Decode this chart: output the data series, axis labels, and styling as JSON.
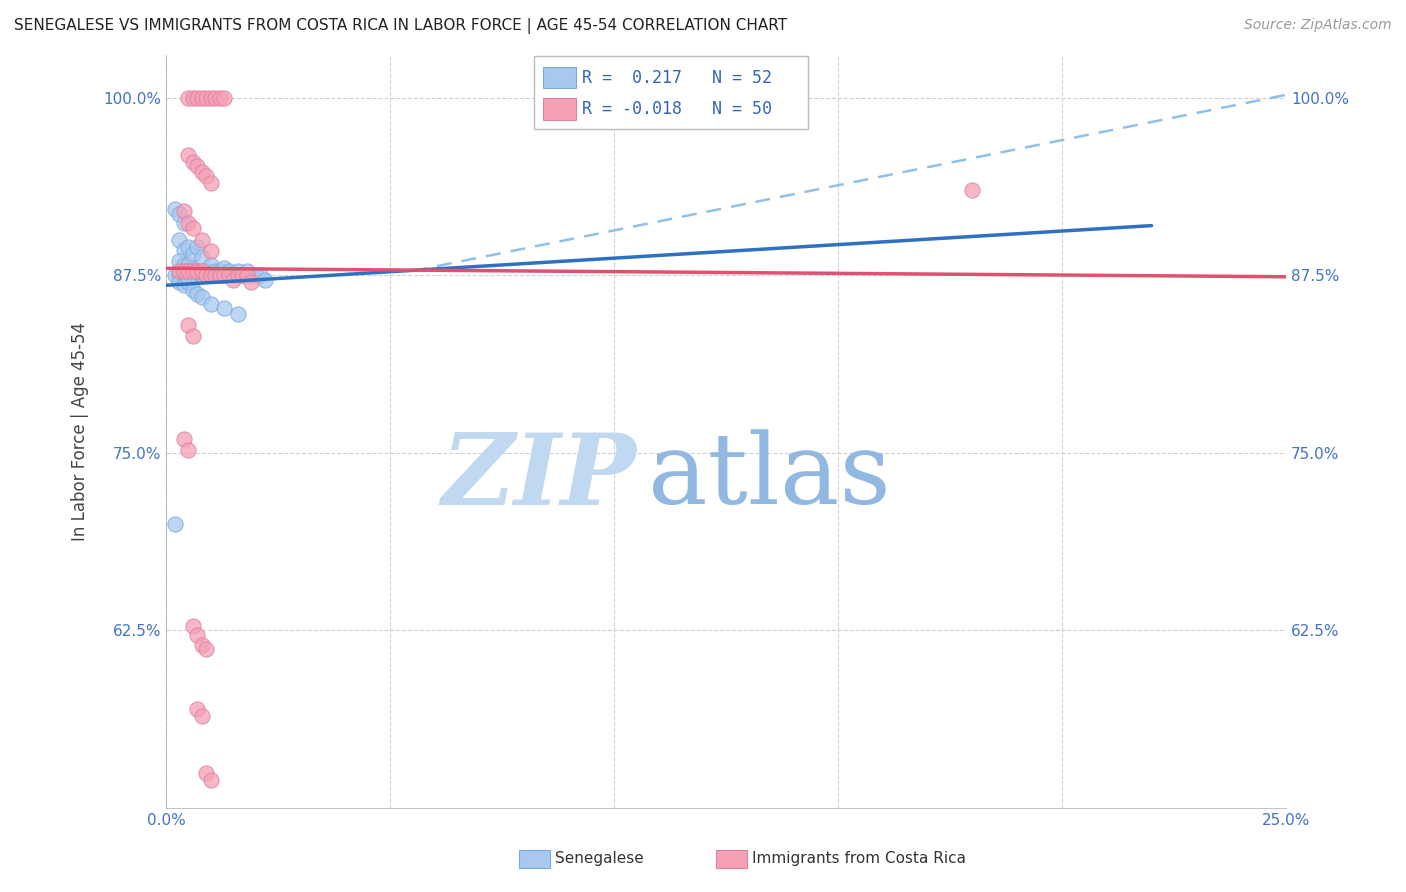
{
  "title": "SENEGALESE VS IMMIGRANTS FROM COSTA RICA IN LABOR FORCE | AGE 45-54 CORRELATION CHART",
  "source": "Source: ZipAtlas.com",
  "ylabel": "In Labor Force | Age 45-54",
  "x_min": 0.0,
  "x_max": 0.25,
  "y_min": 0.5,
  "y_max": 1.03,
  "x_ticks": [
    0.0,
    0.05,
    0.1,
    0.15,
    0.2,
    0.25
  ],
  "x_tick_labels": [
    "0.0%",
    "",
    "",
    "",
    "",
    "25.0%"
  ],
  "y_ticks": [
    0.625,
    0.75,
    0.875,
    1.0
  ],
  "y_tick_labels": [
    "62.5%",
    "75.0%",
    "87.5%",
    "100.0%"
  ],
  "senegalese_R": 0.217,
  "senegalese_N": 52,
  "costarica_R": -0.018,
  "costarica_N": 50,
  "blue_color": "#A8C8F0",
  "pink_color": "#F4A0B5",
  "blue_line_color": "#3070C0",
  "pink_line_color": "#E05070",
  "blue_dash_color": "#90C0E8",
  "watermark_zip_color": "#C8DCF0",
  "watermark_atlas_color": "#A0C4E8",
  "blue_scatter": [
    [
      0.002,
      0.922
    ],
    [
      0.003,
      0.918
    ],
    [
      0.004,
      0.912
    ],
    [
      0.003,
      0.9
    ],
    [
      0.004,
      0.893
    ],
    [
      0.005,
      0.895
    ],
    [
      0.003,
      0.885
    ],
    [
      0.004,
      0.882
    ],
    [
      0.005,
      0.882
    ],
    [
      0.006,
      0.89
    ],
    [
      0.007,
      0.895
    ],
    [
      0.008,
      0.888
    ],
    [
      0.005,
      0.878
    ],
    [
      0.006,
      0.878
    ],
    [
      0.007,
      0.878
    ],
    [
      0.008,
      0.878
    ],
    [
      0.009,
      0.878
    ],
    [
      0.01,
      0.882
    ],
    [
      0.011,
      0.878
    ],
    [
      0.012,
      0.878
    ],
    [
      0.013,
      0.88
    ],
    [
      0.002,
      0.875
    ],
    [
      0.003,
      0.875
    ],
    [
      0.004,
      0.875
    ],
    [
      0.005,
      0.875
    ],
    [
      0.006,
      0.875
    ],
    [
      0.007,
      0.875
    ],
    [
      0.008,
      0.875
    ],
    [
      0.009,
      0.875
    ],
    [
      0.01,
      0.875
    ],
    [
      0.011,
      0.875
    ],
    [
      0.012,
      0.875
    ],
    [
      0.013,
      0.875
    ],
    [
      0.014,
      0.878
    ],
    [
      0.015,
      0.875
    ],
    [
      0.016,
      0.878
    ],
    [
      0.017,
      0.875
    ],
    [
      0.018,
      0.878
    ],
    [
      0.019,
      0.875
    ],
    [
      0.02,
      0.875
    ],
    [
      0.021,
      0.875
    ],
    [
      0.022,
      0.872
    ],
    [
      0.003,
      0.87
    ],
    [
      0.004,
      0.868
    ],
    [
      0.005,
      0.87
    ],
    [
      0.006,
      0.865
    ],
    [
      0.007,
      0.862
    ],
    [
      0.008,
      0.86
    ],
    [
      0.01,
      0.855
    ],
    [
      0.013,
      0.852
    ],
    [
      0.016,
      0.848
    ],
    [
      0.002,
      0.7
    ]
  ],
  "pink_scatter": [
    [
      0.005,
      1.0
    ],
    [
      0.006,
      1.0
    ],
    [
      0.007,
      1.0
    ],
    [
      0.008,
      1.0
    ],
    [
      0.009,
      1.0
    ],
    [
      0.01,
      1.0
    ],
    [
      0.011,
      1.0
    ],
    [
      0.012,
      1.0
    ],
    [
      0.013,
      1.0
    ],
    [
      0.005,
      0.96
    ],
    [
      0.006,
      0.955
    ],
    [
      0.007,
      0.952
    ],
    [
      0.008,
      0.948
    ],
    [
      0.009,
      0.945
    ],
    [
      0.01,
      0.94
    ],
    [
      0.004,
      0.92
    ],
    [
      0.005,
      0.912
    ],
    [
      0.006,
      0.908
    ],
    [
      0.008,
      0.9
    ],
    [
      0.01,
      0.892
    ],
    [
      0.003,
      0.878
    ],
    [
      0.004,
      0.878
    ],
    [
      0.005,
      0.878
    ],
    [
      0.006,
      0.878
    ],
    [
      0.007,
      0.878
    ],
    [
      0.008,
      0.878
    ],
    [
      0.009,
      0.875
    ],
    [
      0.01,
      0.875
    ],
    [
      0.011,
      0.875
    ],
    [
      0.012,
      0.875
    ],
    [
      0.013,
      0.875
    ],
    [
      0.014,
      0.875
    ],
    [
      0.015,
      0.872
    ],
    [
      0.016,
      0.875
    ],
    [
      0.017,
      0.875
    ],
    [
      0.018,
      0.875
    ],
    [
      0.019,
      0.87
    ],
    [
      0.18,
      0.935
    ],
    [
      0.005,
      0.84
    ],
    [
      0.006,
      0.832
    ],
    [
      0.004,
      0.76
    ],
    [
      0.005,
      0.752
    ],
    [
      0.006,
      0.628
    ],
    [
      0.007,
      0.622
    ],
    [
      0.008,
      0.615
    ],
    [
      0.009,
      0.612
    ],
    [
      0.007,
      0.57
    ],
    [
      0.008,
      0.565
    ],
    [
      0.009,
      0.525
    ],
    [
      0.01,
      0.52
    ]
  ],
  "blue_trendline": [
    [
      0.0,
      0.868
    ],
    [
      0.22,
      0.91
    ]
  ],
  "blue_dashed_line": [
    [
      0.055,
      0.878
    ],
    [
      0.25,
      1.002
    ]
  ],
  "pink_trendline": [
    [
      0.0,
      0.88
    ],
    [
      0.25,
      0.874
    ]
  ]
}
